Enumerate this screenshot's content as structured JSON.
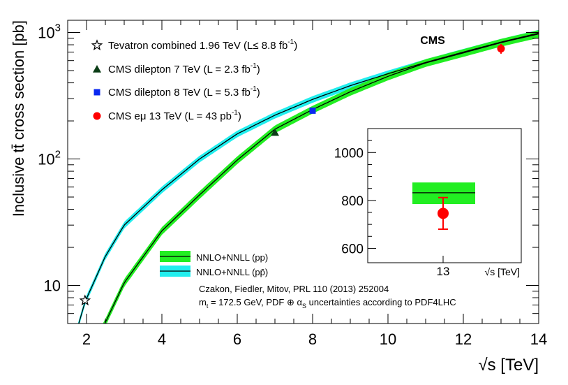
{
  "chart_data": {
    "type": "line",
    "experiment_label": "CMS",
    "xlabel": "√s [TeV]",
    "ylabel": "Inclusive tt̄ cross section [pb]",
    "xlim": [
      1.5,
      14
    ],
    "ylim": [
      5,
      1250
    ],
    "yscale": "log",
    "x_ticks": [
      "2",
      "4",
      "6",
      "8",
      "10",
      "12",
      "14"
    ],
    "y_ticks": [
      {
        "value": 10,
        "label": "10"
      },
      {
        "value": 100,
        "label": "10",
        "exp": "2"
      },
      {
        "value": 1000,
        "label": "10",
        "exp": "3"
      }
    ],
    "colors": {
      "pp_band": "#22ee22",
      "ppbar_band": "#22eeee",
      "line": "#000000",
      "tevatron": "#000000",
      "cms7": "#0b3d16",
      "cms8": "#0a28f0",
      "cms13": "#ff0000"
    },
    "series": [
      {
        "name": "NNLO+NNLL (pp)",
        "x": [
          2.3,
          2.5,
          3,
          4,
          5,
          6,
          7,
          8,
          9,
          10,
          11,
          12,
          13,
          14
        ],
        "y": [
          3.9,
          5.1,
          10.5,
          27,
          52,
          98,
          172,
          246,
          340,
          450,
          575,
          690,
          832,
          975
        ],
        "band": 0.07
      },
      {
        "name": "NNLO+NNLL (pp̄)",
        "x": [
          1.5,
          1.96,
          2.5,
          3,
          4,
          5,
          6,
          7,
          8,
          9,
          10,
          11,
          12,
          13,
          14
        ],
        "y": [
          2.5,
          7.4,
          17,
          30,
          57,
          100,
          158,
          222,
          296,
          380,
          472,
          580,
          700,
          840,
          990
        ],
        "band": 0.06
      }
    ],
    "points": [
      {
        "name": "Tevatron combined 1.96 TeV",
        "x": 1.96,
        "y": 7.6,
        "marker": "star"
      },
      {
        "name": "CMS dilepton 7 TeV",
        "x": 7,
        "y": 162,
        "marker": "triangle"
      },
      {
        "name": "CMS dilepton 8 TeV",
        "x": 8,
        "y": 241,
        "marker": "square"
      },
      {
        "name": "CMS eμ 13 TeV",
        "x": 13,
        "y": 746,
        "marker": "circle",
        "yerr": [
          680,
          812
        ]
      }
    ],
    "legend_markers": [
      {
        "text": "Tevatron combined 1.96 TeV (L",
        "sym": "≤",
        "val": " 8.8 fb",
        "sup": "-1",
        "end": ")"
      },
      {
        "text": "CMS dilepton 7 TeV (L = 2.3 fb",
        "sup": "-1",
        "end": ")"
      },
      {
        "text": "CMS dilepton 8 TeV (L = 5.3 fb",
        "sup": "-1",
        "end": ")"
      },
      {
        "text": "CMS eμ 13 TeV (L = 43 pb",
        "sup": "-1",
        "end": ")"
      }
    ],
    "legend_bands": [
      "NNLO+NNLL (pp)",
      "NNLO+NNLL (pp̄)"
    ],
    "citation": "Czakon, Fiedler, Mitov, PRL 110 (2013) 252004",
    "uncertainty_note": "= 172.5 GeV, PDF ⊕ α",
    "uncertainty_tail": " uncertainties according to PDF4LHC",
    "inset": {
      "ylim": [
        540,
        1100
      ],
      "y_ticks": [
        "600",
        "800",
        "1000"
      ],
      "x_tick": "13",
      "xlabel": "√s [TeV]",
      "theory_central": 832,
      "theory_band": [
        785,
        875
      ],
      "measurement": 746,
      "err_stat": [
        712,
        780
      ],
      "err_total": [
        680,
        812
      ]
    }
  }
}
